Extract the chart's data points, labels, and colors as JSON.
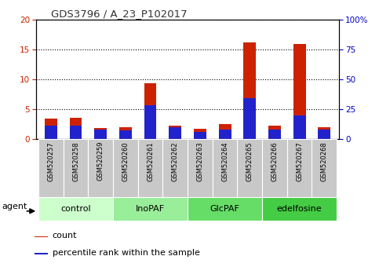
{
  "title": "GDS3796 / A_23_P102017",
  "samples": [
    "GSM520257",
    "GSM520258",
    "GSM520259",
    "GSM520260",
    "GSM520261",
    "GSM520262",
    "GSM520263",
    "GSM520264",
    "GSM520265",
    "GSM520266",
    "GSM520267",
    "GSM520268"
  ],
  "count_values": [
    3.4,
    3.5,
    1.8,
    2.0,
    9.3,
    2.2,
    1.7,
    2.5,
    16.2,
    2.2,
    15.9,
    2.0
  ],
  "percentile_values": [
    11,
    11,
    8,
    7,
    28,
    10,
    6,
    8,
    34,
    8,
    20,
    8
  ],
  "count_color": "#cc2200",
  "percentile_color": "#2222cc",
  "ylim_left": [
    0,
    20
  ],
  "ylim_right": [
    0,
    100
  ],
  "yticks_left": [
    0,
    5,
    10,
    15,
    20
  ],
  "yticks_right": [
    0,
    25,
    50,
    75,
    100
  ],
  "ytick_labels_right": [
    "0",
    "25",
    "50",
    "75",
    "100%"
  ],
  "groups": [
    {
      "label": "control",
      "start": 0,
      "end": 2,
      "color": "#ccffcc"
    },
    {
      "label": "InoPAF",
      "start": 3,
      "end": 5,
      "color": "#99ee99"
    },
    {
      "label": "GlcPAF",
      "start": 6,
      "end": 8,
      "color": "#66dd66"
    },
    {
      "label": "edelfosine",
      "start": 9,
      "end": 11,
      "color": "#44cc44"
    }
  ],
  "agent_label": "agent",
  "legend_count": "count",
  "legend_percentile": "percentile rank within the sample",
  "bar_width": 0.5,
  "tick_bg_color": "#c8c8c8",
  "title_color": "#333333",
  "left_tick_color": "#cc2200",
  "right_tick_color": "#0000cc"
}
